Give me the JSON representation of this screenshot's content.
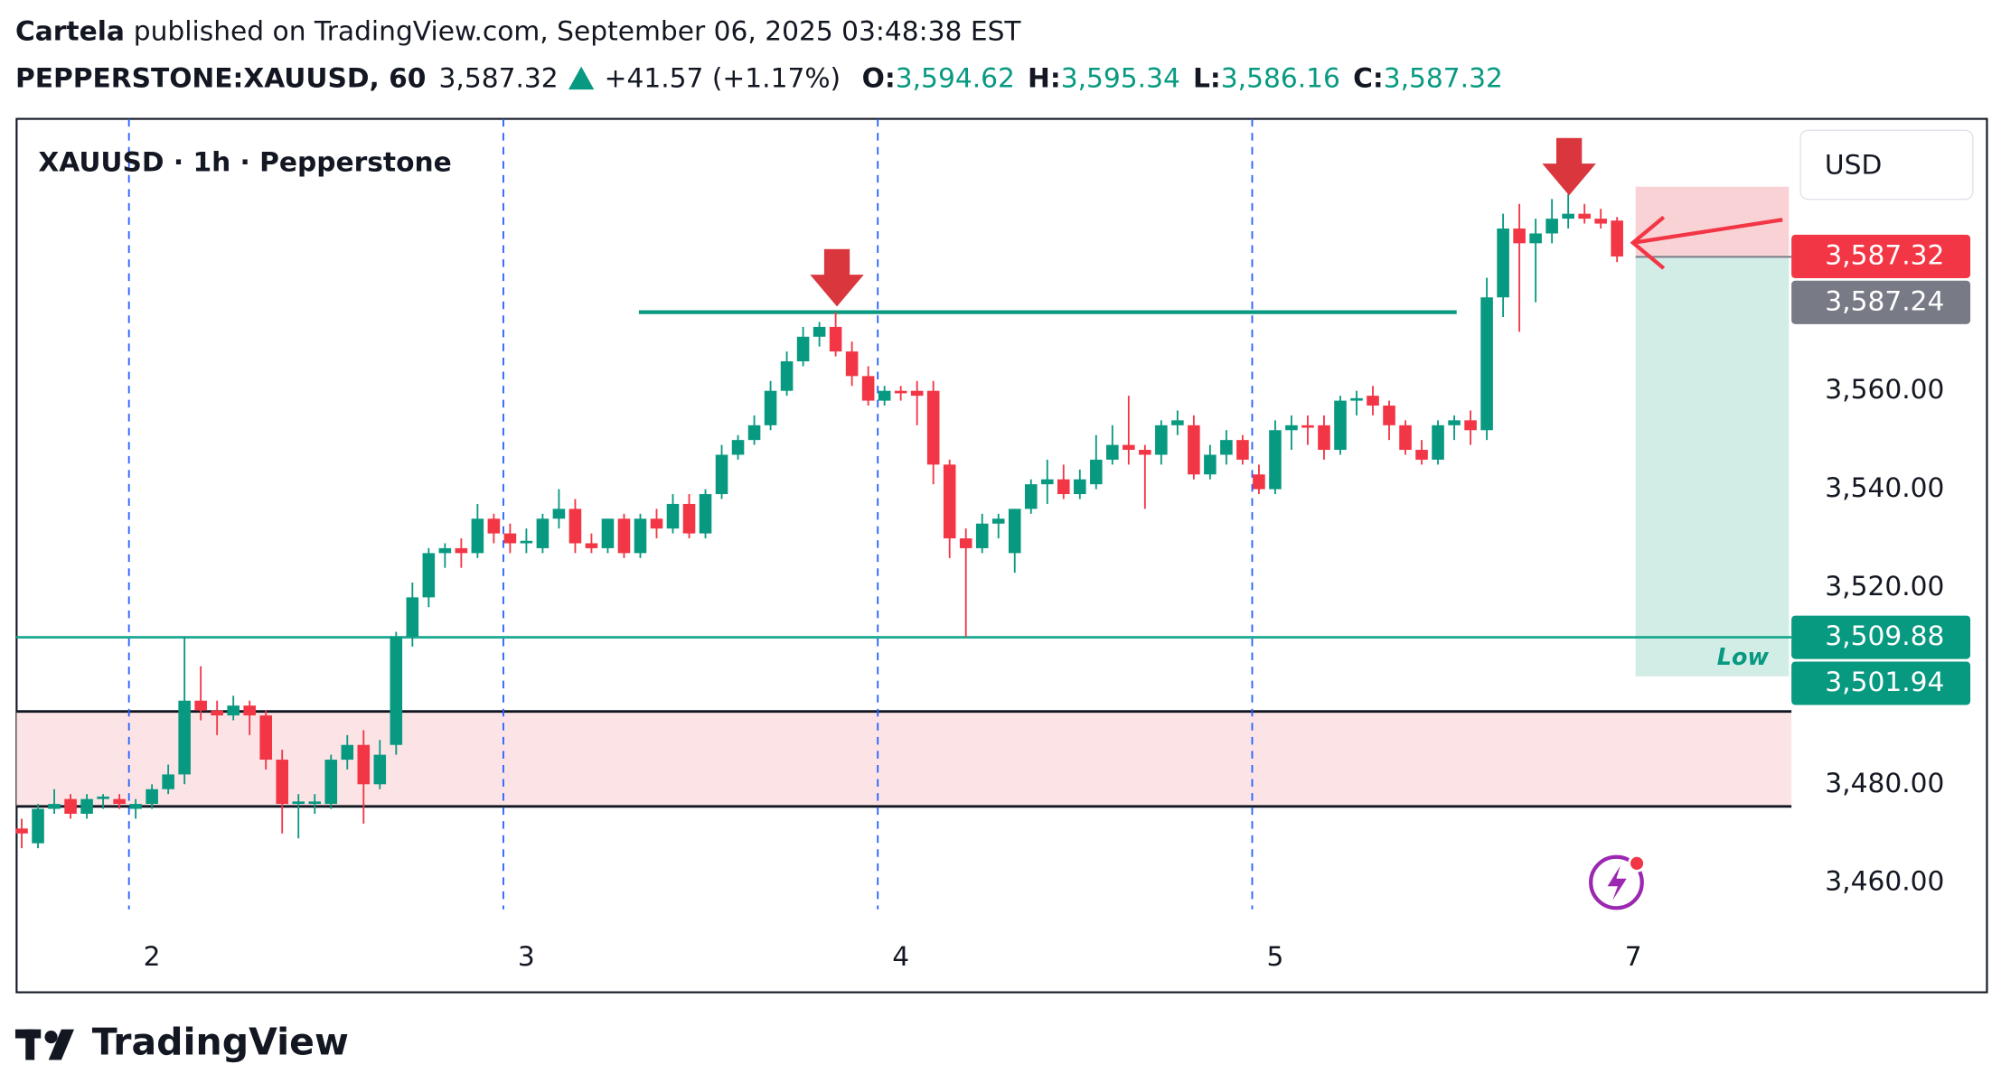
{
  "header": {
    "author": "Cartela",
    "published": "published on TradingView.com, September 06, 2025 03:48:38 EST",
    "symbol": "PEPPERSTONE:XAUUSD, 60",
    "price": "3,587.32",
    "change": "+41.57 (+1.17%)",
    "ohlc": [
      {
        "key": "O:",
        "value": "3,594.62"
      },
      {
        "key": "H:",
        "value": "3,595.34"
      },
      {
        "key": "L:",
        "value": "3,586.16"
      },
      {
        "key": "C:",
        "value": "3,587.32"
      }
    ]
  },
  "chart_data": {
    "type": "candlestick",
    "title": "XAUUSD · 1h · Pepperstone",
    "currency": "USD",
    "up_color": "#089981",
    "down_color": "#f23645",
    "categories": [
      null,
      null,
      null,
      null,
      null,
      null,
      null,
      null,
      "2",
      null,
      null,
      null,
      null,
      null,
      null,
      null,
      null,
      null,
      null,
      null,
      null,
      null,
      null,
      null,
      null,
      null,
      null,
      null,
      null,
      null,
      null,
      "3",
      null,
      null,
      null,
      null,
      null,
      null,
      null,
      null,
      null,
      null,
      null,
      null,
      null,
      null,
      null,
      null,
      null,
      null,
      null,
      null,
      null,
      null,
      "4",
      null,
      null,
      null,
      null,
      null,
      null,
      null,
      null,
      null,
      null,
      null,
      null,
      null,
      null,
      null,
      null,
      null,
      null,
      null,
      null,
      null,
      null,
      "5",
      null,
      null,
      null,
      null,
      null,
      null,
      null,
      null,
      null,
      null,
      null,
      null,
      null,
      null,
      null,
      null,
      null,
      null,
      null,
      null,
      null,
      "7"
    ],
    "open": [
      3471,
      3468,
      3475,
      3477,
      3474,
      3477,
      3477,
      3475,
      3476,
      3479,
      3482,
      3497,
      3495,
      3494,
      3496,
      3494,
      3485,
      3476,
      3476,
      3476,
      3485,
      3488,
      3480,
      3488,
      3510,
      3518,
      3527,
      3528,
      3527,
      3534,
      3531,
      3529,
      3528,
      3534,
      3536,
      3529,
      3528,
      3534,
      3527,
      3534,
      3532,
      3537,
      3531,
      3539,
      3547,
      3550,
      3553,
      3560,
      3566,
      3571,
      3573,
      3568,
      3563,
      3558,
      3560,
      3560,
      3560,
      3545,
      3530,
      3528,
      3533,
      3527,
      3536,
      3541,
      3542,
      3539,
      3541,
      3546,
      3549,
      3548,
      3547,
      3553,
      3553,
      3543,
      3547,
      3550,
      3543,
      3540,
      3552,
      3553,
      3553,
      3548,
      3558,
      3559,
      3557,
      3553,
      3548,
      3546,
      3553,
      3554,
      3552,
      3579,
      3593,
      3590,
      3592,
      3595,
      3596,
      3595,
      3594.62,
      null
    ],
    "high": [
      3473,
      3476,
      3479,
      3478,
      3478,
      3478,
      3478,
      3477,
      3480,
      3484,
      3510,
      3504,
      3497,
      3498,
      3497,
      3495,
      3487,
      3478,
      3478,
      3486,
      3490,
      3491,
      3489,
      3511,
      3521,
      3528,
      3529,
      3530,
      3537,
      3535,
      3533,
      3532,
      3535,
      3540,
      3538,
      3531,
      3534,
      3535,
      3535,
      3536,
      3539,
      3539,
      3540,
      3549,
      3551,
      3555,
      3562,
      3568,
      3573,
      3574,
      3576,
      3570,
      3565,
      3561,
      3561,
      3562,
      3562,
      3546,
      3532,
      3535,
      3535,
      3536,
      3542,
      3546,
      3545,
      3544,
      3551,
      3553,
      3559,
      3549,
      3554,
      3556,
      3555,
      3549,
      3552,
      3551,
      3545,
      3554,
      3555,
      3555,
      3555,
      3559,
      3560,
      3561,
      3558,
      3554,
      3550,
      3554,
      3555,
      3556,
      3583,
      3596,
      3598,
      3595,
      3599,
      3600,
      3598,
      3597,
      3595.34,
      null
    ],
    "low": [
      3467,
      3467,
      3474,
      3473,
      3473,
      3475,
      3475,
      3473,
      3475,
      3478,
      3480,
      3493,
      3490,
      3493,
      3490,
      3483,
      3470,
      3469,
      3474,
      3475,
      3483,
      3472,
      3479,
      3486,
      3508,
      3516,
      3524,
      3524,
      3526,
      3529,
      3527,
      3527,
      3527,
      3532,
      3527,
      3527,
      3527,
      3526,
      3526,
      3530,
      3531,
      3530,
      3530,
      3538,
      3546,
      3549,
      3552,
      3559,
      3565,
      3569,
      3567,
      3561,
      3557,
      3557,
      3558,
      3553,
      3541,
      3526,
      3510,
      3527,
      3530,
      3523,
      3535,
      3537,
      3538,
      3538,
      3540,
      3545,
      3545,
      3536,
      3545,
      3551,
      3542,
      3542,
      3545,
      3545,
      3539,
      3539,
      3548,
      3549,
      3546,
      3547,
      3555,
      3555,
      3550,
      3547,
      3545,
      3545,
      3550,
      3549,
      3550,
      3575,
      3572,
      3578,
      3590,
      3593,
      3594,
      3593,
      3586.16,
      null
    ],
    "close": [
      3470,
      3475,
      3476,
      3474,
      3477,
      3477.5,
      3476,
      3476,
      3479,
      3482,
      3497,
      3495,
      3494,
      3496,
      3494,
      3485,
      3476,
      3476.5,
      3476.5,
      3485,
      3488,
      3480,
      3486,
      3510,
      3518,
      3527,
      3528,
      3527,
      3534,
      3531,
      3529,
      3529.5,
      3534,
      3536,
      3529,
      3528,
      3534,
      3527,
      3534,
      3532,
      3537,
      3531,
      3539,
      3547,
      3550,
      3553,
      3560,
      3566,
      3571,
      3573,
      3568,
      3563,
      3558,
      3560,
      3559.5,
      3559,
      3545,
      3530,
      3528,
      3533,
      3534,
      3536,
      3541,
      3542,
      3539,
      3542,
      3546,
      3549,
      3548,
      3547,
      3553,
      3554,
      3543,
      3547,
      3550,
      3546,
      3540,
      3552,
      3553,
      3552.5,
      3548,
      3558,
      3558.5,
      3557,
      3553,
      3548,
      3546,
      3553,
      3554,
      3552,
      3579,
      3593,
      3590,
      3592,
      3595,
      3596,
      3595,
      3594,
      3587.32,
      null
    ],
    "ylim": [
      3437.7,
      3615.3
    ],
    "yticks": [
      {
        "value": 3560,
        "label": "3,560.00"
      },
      {
        "value": 3540,
        "label": "3,540.00"
      },
      {
        "value": 3520,
        "label": "3,520.00"
      },
      {
        "value": 3480,
        "label": "3,480.00"
      },
      {
        "value": 3460,
        "label": "3,460.00"
      }
    ],
    "price_labels": [
      {
        "value": 3587.32,
        "label": "3,587.32",
        "color": "#f23645"
      },
      {
        "value": 3587.24,
        "label": "3,587.24",
        "color": "#787b86"
      },
      {
        "value": 3509.88,
        "label": "3,509.88",
        "color": "#089981",
        "line": true
      },
      {
        "value": 3501.94,
        "label": "3,501.94",
        "color": "#089981"
      }
    ],
    "resistance": 3576,
    "zone": [
      3475.5,
      3494.8
    ],
    "position": {
      "stop": 3601.5,
      "target_label": "Low"
    }
  },
  "footer": {
    "brand": "TradingView"
  }
}
